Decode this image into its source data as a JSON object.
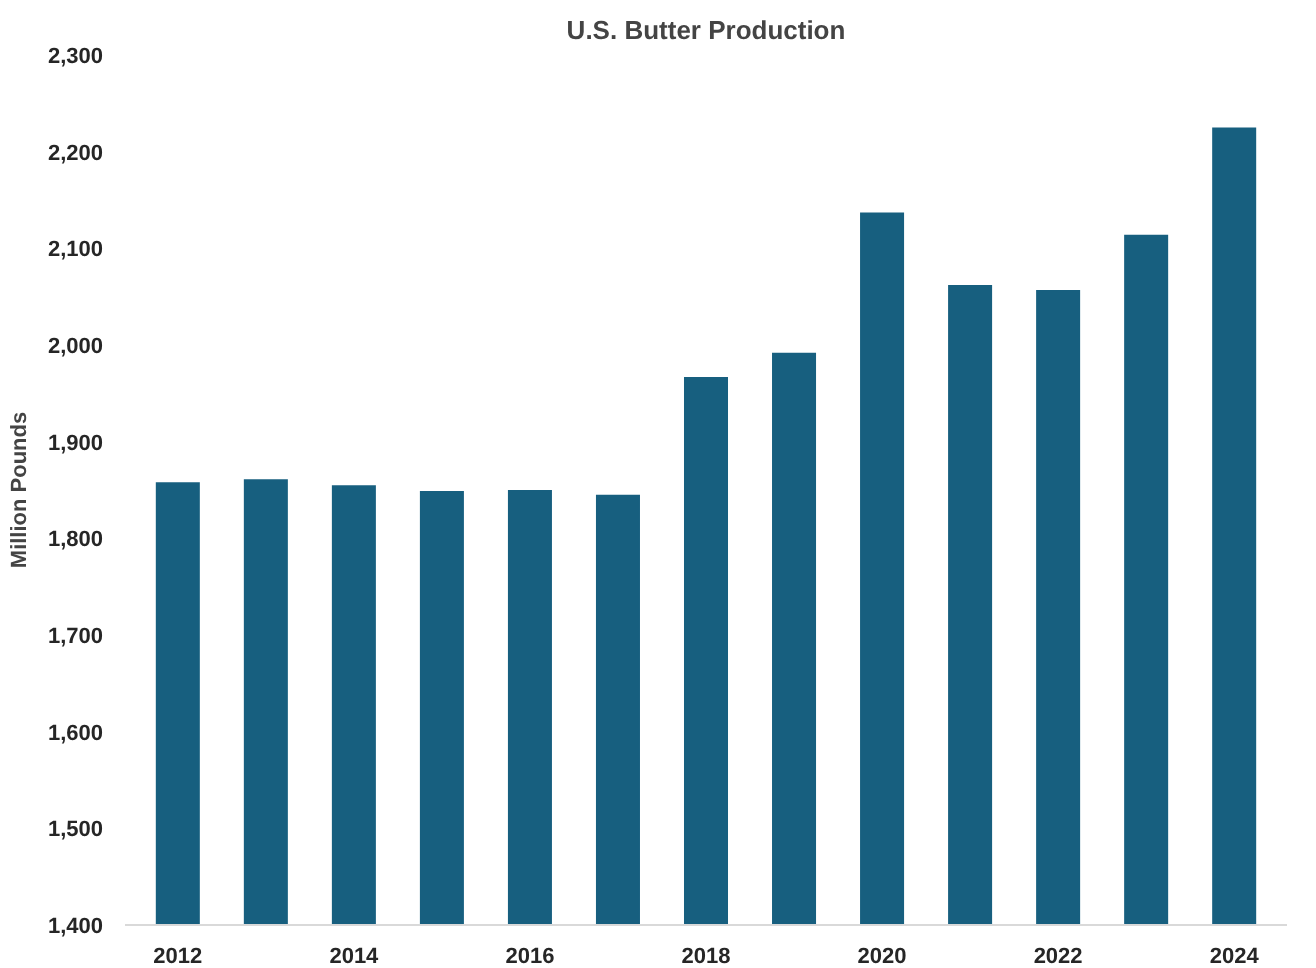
{
  "chart_data": {
    "type": "bar",
    "title": "U.S. Butter Production",
    "ylabel": "Million Pounds",
    "categories": [
      "2012",
      null,
      "2014",
      null,
      "2016",
      null,
      "2018",
      null,
      "2020",
      null,
      "2022",
      null,
      "2024"
    ],
    "values": [
      1858,
      1861,
      1855,
      1849,
      1850,
      1845,
      1967,
      1992,
      2137,
      2062,
      2057,
      2114,
      2225
    ],
    "color": "#175f7f",
    "ylim": [
      1400,
      2300
    ],
    "yticks": [
      {
        "value": 1400,
        "label": "1,400"
      },
      {
        "value": 1500,
        "label": "1,500"
      },
      {
        "value": 1600,
        "label": "1,600"
      },
      {
        "value": 1700,
        "label": "1,700"
      },
      {
        "value": 1800,
        "label": "1,800"
      },
      {
        "value": 1900,
        "label": "1,900"
      },
      {
        "value": 2000,
        "label": "2,000"
      },
      {
        "value": 2100,
        "label": "2,100"
      },
      {
        "value": 2200,
        "label": "2,200"
      },
      {
        "value": 2300,
        "label": "2,300"
      }
    ],
    "grid": false
  }
}
